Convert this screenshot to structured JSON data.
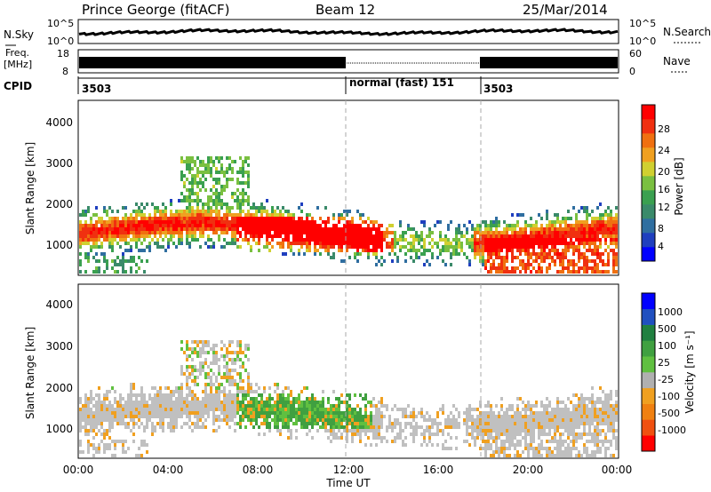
{
  "header": {
    "station": "Prince George (fitACF)",
    "beam": "Beam 12",
    "date": "25/Mar/2014"
  },
  "top_panels": {
    "nsky_label": "N.Sky",
    "nsky_ticks": [
      "10^5",
      "10^0"
    ],
    "nsearch_label": "N.Search",
    "nsearch_ticks": [
      "10^5",
      "10^0"
    ],
    "freq_label_1": "Freq.",
    "freq_label_2": "[MHz]",
    "freq_ticks": [
      "18",
      "8"
    ],
    "nave_label": "Nave",
    "nave_ticks": [
      "60",
      "0"
    ],
    "cpid_label": "CPID",
    "cpid_segments": [
      "3503",
      "normal (fast) 151",
      "3503"
    ]
  },
  "chart_data": [
    {
      "type": "heatmap",
      "name": "power",
      "ylabel": "Slant Range [km]",
      "yticks": [
        "4000",
        "3000",
        "2000",
        "1000"
      ],
      "ylim": [
        180,
        4500
      ],
      "xlim": [
        0,
        24
      ],
      "colorbar_label": "Power [dB]",
      "colorbar_ticks": [
        "28",
        "24",
        "20",
        "16",
        "12",
        "8",
        "4"
      ],
      "colorbar_colors": [
        "#0000ff",
        "#1f3fbf",
        "#2f6ea0",
        "#3a8a6a",
        "#3aa050",
        "#7ac040",
        "#d0d030",
        "#f0a020",
        "#f07010",
        "#f03010",
        "#ff0000"
      ],
      "cpid_change_times": [
        12,
        18
      ]
    },
    {
      "type": "heatmap",
      "name": "velocity",
      "ylabel": "Slant Range [km]",
      "yticks": [
        "4000",
        "3000",
        "2000",
        "1000"
      ],
      "ylim": [
        180,
        4500
      ],
      "xlim": [
        0,
        24
      ],
      "colorbar_label": "Velocity [m s⁻¹]",
      "colorbar_ticks": [
        "1000",
        "500",
        "100",
        "25",
        "-25",
        "-100",
        "-500",
        "-1000"
      ],
      "colorbar_colors": [
        "#0000ff",
        "#2050c0",
        "#208040",
        "#40a040",
        "#60c040",
        "#b0b0b0",
        "#f0a020",
        "#f08010",
        "#f05010",
        "#ff0000"
      ],
      "xticks": [
        "00:00",
        "04:00",
        "08:00",
        "12:00",
        "16:00",
        "20:00",
        "00:00"
      ],
      "xlabel": "Time UT",
      "cpid_change_times": [
        12,
        18
      ]
    }
  ]
}
